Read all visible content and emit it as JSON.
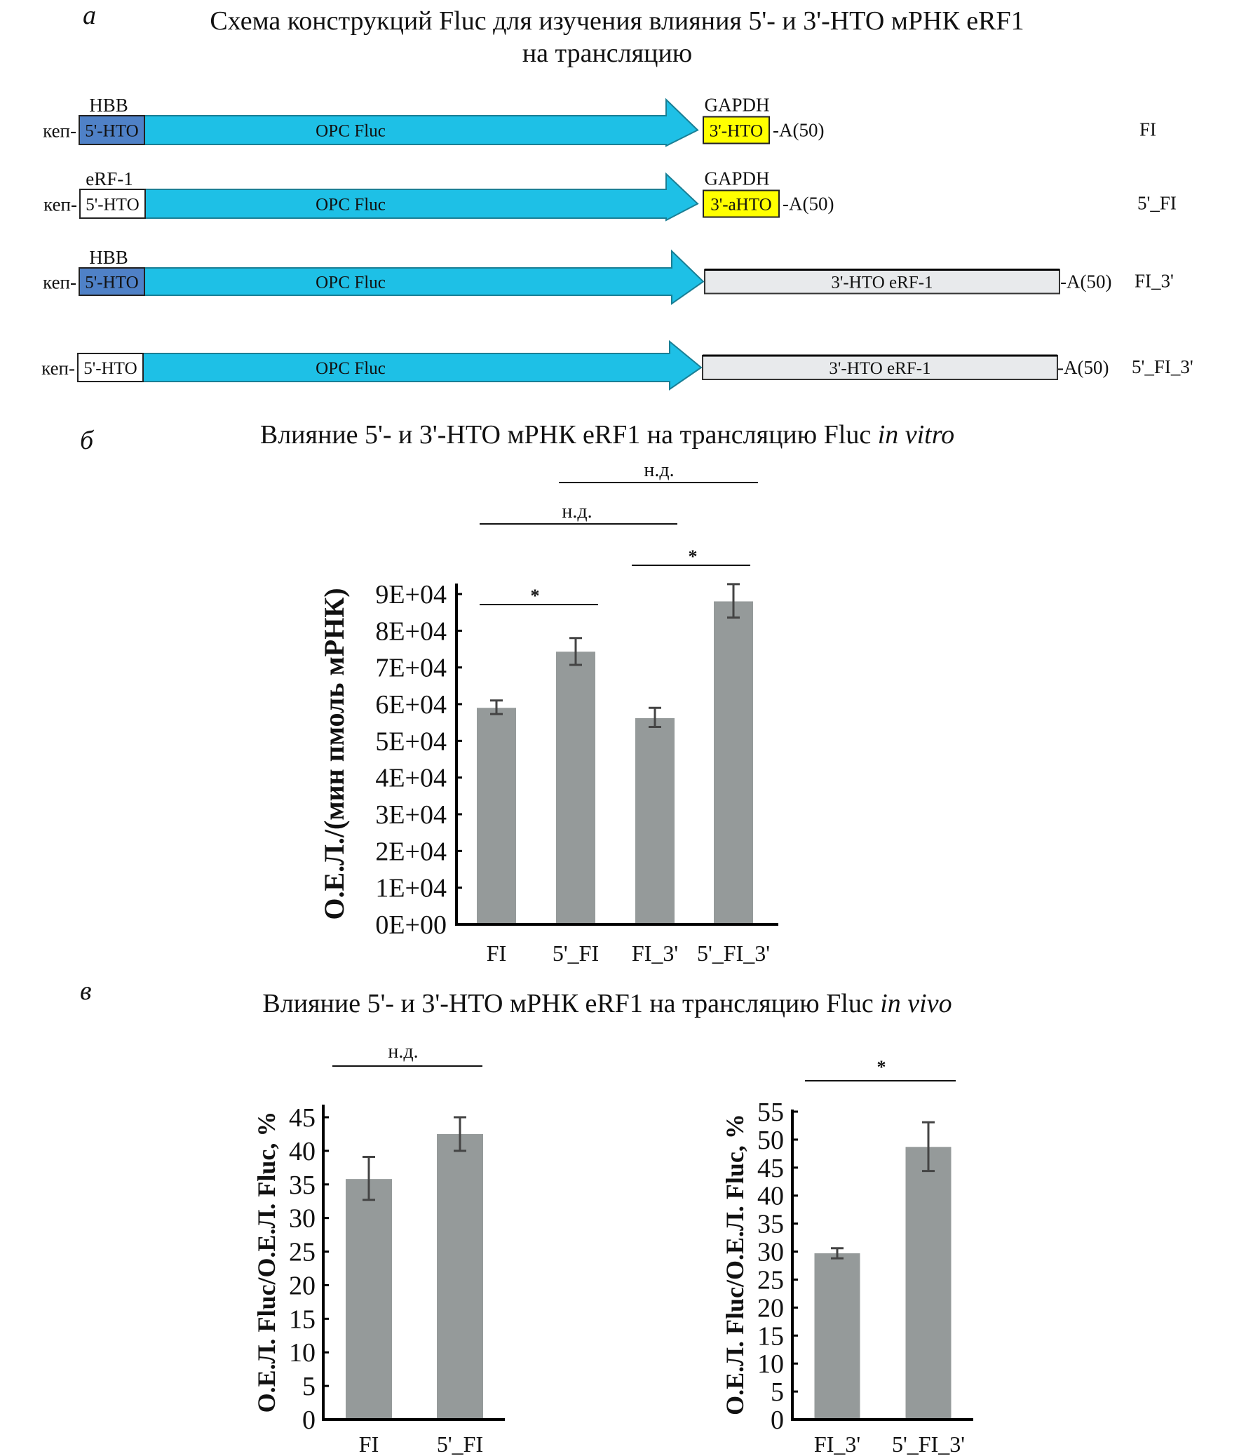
{
  "panel_a": {
    "letter": "а",
    "title_line1": "Схема конструкций Fluc для изучения влияния 5'- и 3'-НТО мРНК eRF1",
    "title_line2": "на трансляцию",
    "constructs": [
      {
        "name": "FI",
        "cap": "кеп-",
        "utr5_label": "5'-НТО",
        "utr5_source": "HBB",
        "utr5_color": "#4f81c7",
        "orf_label": "ОРС Fluc",
        "utr3_label": "3'-НТО",
        "utr3_source": "GAPDH",
        "utr3_color": "#ffff00",
        "polyA": "-A(50)"
      },
      {
        "name": "5'_FI",
        "cap": "кеп-",
        "utr5_label": "5'-НТО",
        "utr5_source": "eRF-1",
        "utr5_color": "#ffffff",
        "orf_label": "ОРС Fluc",
        "utr3_label": "3'-aНТО",
        "utr3_source": "GAPDH",
        "utr3_color": "#ffff00",
        "polyA": "-A(50)"
      },
      {
        "name": "FI_3'",
        "cap": "кеп-",
        "utr5_label": "5'-НТО",
        "utr5_source": "HBB",
        "utr5_color": "#4f81c7",
        "orf_label": "ОРС Fluc",
        "utr3_label": "3'-НТО eRF-1",
        "utr3_source": "",
        "utr3_color": "#e8eaec",
        "polyA": "-A(50)"
      },
      {
        "name": "5'_FI_3'",
        "cap": "кеп-",
        "utr5_label": "5'-НТО",
        "utr5_source": "",
        "utr5_color": "#ffffff",
        "orf_label": "ОРС Fluc",
        "utr3_label": "3'-НТО eRF-1",
        "utr3_source": "",
        "utr3_color": "#e8eaec",
        "polyA": "-A(50)"
      }
    ],
    "orf_color": "#1ec0e6"
  },
  "panel_b": {
    "letter": "б",
    "title_prefix": "Влияние 5'- и 3'-НТО мРНК eRF1 на трансляцию Fluc ",
    "title_italic": "in vitro"
  },
  "panel_c": {
    "letter": "в",
    "title_prefix": "Влияние 5'- и 3'-НТО мРНК eRF1 на трансляцию Fluc ",
    "title_italic": "in vivo"
  },
  "colors": {
    "bar": "#959a9a",
    "error": "#444444",
    "axis": "#000000"
  },
  "chart_data": [
    {
      "id": "in_vitro",
      "type": "bar",
      "title": "Влияние 5'- и 3'-НТО мРНК eRF1 на трансляцию Fluc in vitro",
      "categories": [
        "FI",
        "5'_FI",
        "FI_3'",
        "5'_FI_3'"
      ],
      "values": [
        59000,
        74300,
        56200,
        88000
      ],
      "error_low": [
        57300,
        70700,
        53800,
        83600
      ],
      "error_high": [
        61000,
        78000,
        59000,
        92700
      ],
      "ylabel": "О.Е.Л./(мин пмоль мРНК)",
      "xlabel": "",
      "ylim": [
        0,
        90000
      ],
      "yticks": [
        0,
        10000,
        20000,
        30000,
        40000,
        50000,
        60000,
        70000,
        80000,
        90000
      ],
      "ytick_labels": [
        "0E+00",
        "1E+04",
        "2E+04",
        "3E+04",
        "4E+04",
        "5E+04",
        "6E+04",
        "7E+04",
        "8E+04",
        "9E+04"
      ],
      "grid": false,
      "significance": [
        {
          "from": "FI",
          "to": "5'_FI",
          "label": "*"
        },
        {
          "from": "FI_3'",
          "to": "5'_FI_3'",
          "label": "*"
        },
        {
          "from": "FI",
          "to": "FI_3'",
          "label": "н.д."
        },
        {
          "from": "5'_FI",
          "to": "5'_FI_3'",
          "label": "н.д."
        }
      ]
    },
    {
      "id": "in_vivo_5utr",
      "type": "bar",
      "title": "Влияние 5'- и 3'-НТО мРНК eRF1 на трансляцию Fluc in vivo",
      "categories": [
        "FI",
        "5'_FI"
      ],
      "values": [
        35.8,
        42.5
      ],
      "error_low": [
        32.7,
        40.0
      ],
      "error_high": [
        39.1,
        45.0
      ],
      "ylabel": "О.Е.Л. Fluc/О.Е.Л. Fluc, %",
      "xlabel": "",
      "ylim": [
        0,
        45
      ],
      "yticks": [
        0,
        5,
        10,
        15,
        20,
        25,
        30,
        35,
        40,
        45
      ],
      "ytick_labels": [
        "0",
        "5",
        "10",
        "15",
        "20",
        "25",
        "30",
        "35",
        "40",
        "45"
      ],
      "grid": false,
      "significance": [
        {
          "from": "FI",
          "to": "5'_FI",
          "label": "н.д."
        }
      ]
    },
    {
      "id": "in_vivo_3utr",
      "type": "bar",
      "title": "Влияние 5'- и 3'-НТО мРНК eRF1 на трансляцию Fluc in vivo",
      "categories": [
        "FI_3'",
        "5'_FI_3'"
      ],
      "values": [
        29.7,
        48.7
      ],
      "error_low": [
        28.8,
        44.4
      ],
      "error_high": [
        30.6,
        53.1
      ],
      "ylabel": "О.Е.Л. Fluc/О.Е.Л. Fluc, %",
      "xlabel": "",
      "ylim": [
        0,
        55
      ],
      "yticks": [
        0,
        5,
        10,
        15,
        20,
        25,
        30,
        35,
        40,
        45,
        50,
        55
      ],
      "ytick_labels": [
        "0",
        "5",
        "10",
        "15",
        "20",
        "25",
        "30",
        "35",
        "40",
        "45",
        "50",
        "55"
      ],
      "grid": false,
      "significance": [
        {
          "from": "FI_3'",
          "to": "5'_FI_3'",
          "label": "*"
        }
      ]
    }
  ]
}
